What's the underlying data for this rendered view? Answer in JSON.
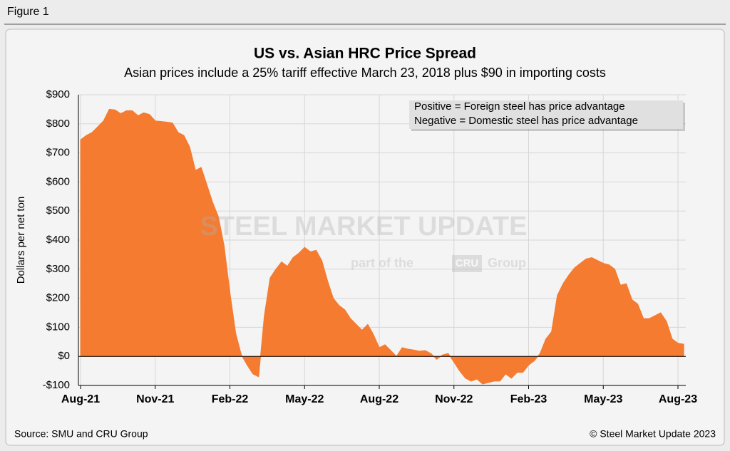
{
  "figure_label": "Figure 1",
  "chart_data": {
    "type": "area",
    "title": "US vs. Asian HRC Price Spread",
    "subtitle": "Asian prices include a 25% tariff effective March 23, 2018 plus $90 in importing costs",
    "y_label": "Dollars per net ton",
    "annotations": [
      "Positive = Foreign steel has price advantage",
      "Negative = Domestic steel has price advantage"
    ],
    "watermark": [
      "STEEL MARKET UPDATE",
      "part of the",
      "CRU",
      "Group"
    ],
    "source": "Source: SMU and CRU Group",
    "copyright": "© Steel Market Update 2023",
    "color": "#f47b30",
    "grid": true,
    "ylim": [
      -100,
      900
    ],
    "yticks": [
      {
        "value": -100,
        "label": "-$100"
      },
      {
        "value": 0,
        "label": "$0"
      },
      {
        "value": 100,
        "label": "$100"
      },
      {
        "value": 200,
        "label": "$200"
      },
      {
        "value": 300,
        "label": "$300"
      },
      {
        "value": 400,
        "label": "$400"
      },
      {
        "value": 500,
        "label": "$500"
      },
      {
        "value": 600,
        "label": "$600"
      },
      {
        "value": 700,
        "label": "$700"
      },
      {
        "value": 800,
        "label": "$800"
      },
      {
        "value": 900,
        "label": "$900"
      }
    ],
    "categories": [
      "Aug-21",
      null,
      null,
      null,
      null,
      null,
      null,
      null,
      null,
      null,
      null,
      null,
      null,
      "Nov-21",
      null,
      null,
      null,
      null,
      null,
      null,
      null,
      null,
      null,
      null,
      null,
      null,
      "Feb-22",
      null,
      null,
      null,
      null,
      null,
      null,
      null,
      null,
      null,
      null,
      null,
      null,
      "May-22",
      null,
      null,
      null,
      null,
      null,
      null,
      null,
      null,
      null,
      null,
      null,
      null,
      "Aug-22",
      null,
      null,
      null,
      null,
      null,
      null,
      null,
      null,
      null,
      null,
      null,
      null,
      "Nov-22",
      null,
      null,
      null,
      null,
      null,
      null,
      null,
      null,
      null,
      null,
      null,
      null,
      "Feb-23",
      null,
      null,
      null,
      null,
      null,
      null,
      null,
      null,
      null,
      null,
      null,
      null,
      "May-23",
      null,
      null,
      null,
      null,
      null,
      null,
      null,
      null,
      null,
      null,
      null,
      null,
      "Aug-23",
      null
    ],
    "values": [
      745,
      760,
      770,
      790,
      810,
      850,
      848,
      835,
      845,
      845,
      828,
      838,
      832,
      810,
      808,
      806,
      803,
      770,
      760,
      720,
      640,
      650,
      590,
      530,
      480,
      380,
      220,
      80,
      5,
      -30,
      -60,
      -70,
      140,
      270,
      300,
      325,
      310,
      340,
      355,
      375,
      360,
      365,
      330,
      260,
      200,
      175,
      160,
      130,
      110,
      90,
      110,
      75,
      30,
      40,
      20,
      0,
      30,
      25,
      22,
      18,
      20,
      10,
      -10,
      5,
      10,
      -20,
      -50,
      -75,
      -85,
      -78,
      -95,
      -90,
      -85,
      -85,
      -60,
      -75,
      -55,
      -55,
      -30,
      -15,
      10,
      60,
      85,
      210,
      250,
      280,
      305,
      320,
      335,
      340,
      330,
      320,
      315,
      300,
      245,
      250,
      195,
      180,
      130,
      130,
      140,
      150,
      120,
      60,
      45,
      42
    ]
  }
}
